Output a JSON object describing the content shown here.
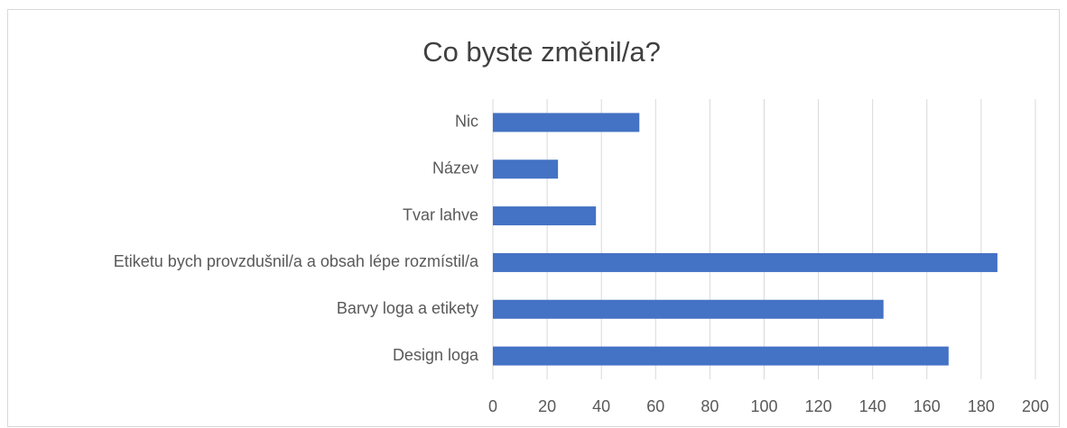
{
  "chart_data": {
    "type": "barh",
    "title": "Co byste změnil/a?",
    "categories": [
      "Nic",
      "Název",
      "Tvar lahve",
      "Etiketu bych provzdušnil/a a obsah lépe rozmístil/a",
      "Barvy loga a etikety",
      "Design loga"
    ],
    "values": [
      54,
      24,
      38,
      186,
      144,
      168
    ],
    "color": "#4472c4",
    "xlim": [
      0,
      200
    ],
    "xticks": [
      0,
      20,
      40,
      60,
      80,
      100,
      120,
      140,
      160,
      180,
      200
    ],
    "grid": true
  }
}
